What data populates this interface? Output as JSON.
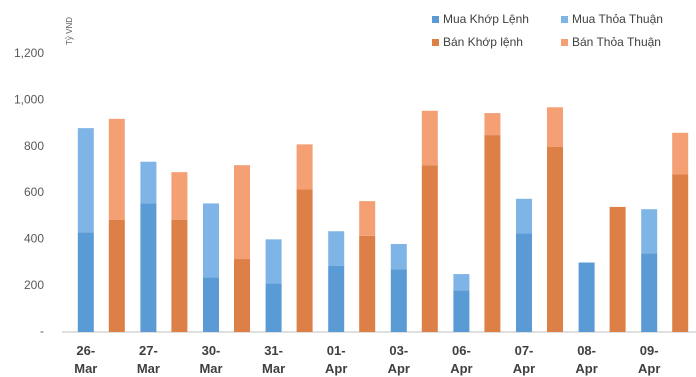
{
  "chart_data": {
    "type": "bar",
    "y_label": "Tỷ VND",
    "categories": [
      "26-Mar",
      "27-Mar",
      "30-Mar",
      "31-Mar",
      "01-Apr",
      "03-Apr",
      "06-Apr",
      "07-Apr",
      "08-Apr",
      "09-Apr"
    ],
    "series": [
      {
        "name": "Mua Khớp Lệnh",
        "color": "#5b9bd5",
        "values": [
          430,
          555,
          235,
          210,
          285,
          270,
          180,
          425,
          300,
          340
        ]
      },
      {
        "name": "Mua Thỏa Thuận",
        "color": "#7fb5e6",
        "values": [
          450,
          180,
          320,
          190,
          150,
          110,
          70,
          150,
          0,
          190
        ]
      },
      {
        "name": "Bán Khớp lệnh",
        "color": "#dd8048",
        "values": [
          485,
          485,
          315,
          615,
          415,
          720,
          850,
          800,
          540,
          680
        ]
      },
      {
        "name": "Bán Thỏa Thuận",
        "color": "#f4a074",
        "values": [
          435,
          205,
          405,
          195,
          150,
          235,
          95,
          170,
          0,
          180
        ]
      }
    ],
    "ylim": [
      0,
      1200
    ],
    "yticks": [
      {
        "value": 0,
        "label": "-"
      },
      200,
      400,
      600,
      800,
      {
        "value": 1000,
        "label": "1,000"
      },
      {
        "value": 1200,
        "label": "1,200"
      }
    ],
    "grid": false,
    "legend": "top-right"
  }
}
